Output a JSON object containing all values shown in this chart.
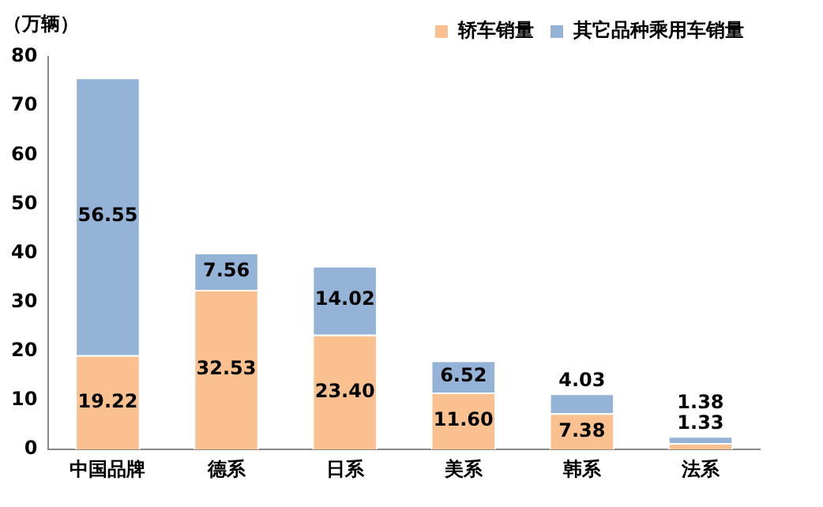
{
  "chart_data": {
    "type": "bar",
    "stacked": true,
    "ylabel": "（万辆）",
    "categories": [
      "中国品牌",
      "德系",
      "日系",
      "美系",
      "韩系",
      "法系"
    ],
    "series": [
      {
        "name": "轿车销量",
        "color": "#fac090",
        "values": [
          19.22,
          32.53,
          23.4,
          11.6,
          7.38,
          1.33
        ],
        "value_labels": [
          "19.22",
          "32.53",
          "23.40",
          "11.60",
          "7.38",
          "1.33"
        ]
      },
      {
        "name": "其它品种乘用车销量",
        "color": "#95b3d7",
        "values": [
          56.55,
          7.56,
          14.02,
          6.52,
          4.03,
          1.38
        ],
        "value_labels": [
          "56.55",
          "7.56",
          "14.02",
          "6.52",
          "4.03",
          "1.38"
        ]
      }
    ],
    "ylim": [
      0,
      80
    ],
    "yticks": [
      0,
      10,
      20,
      30,
      40,
      50,
      60,
      70,
      80
    ],
    "grid": false,
    "legend": "top right"
  }
}
